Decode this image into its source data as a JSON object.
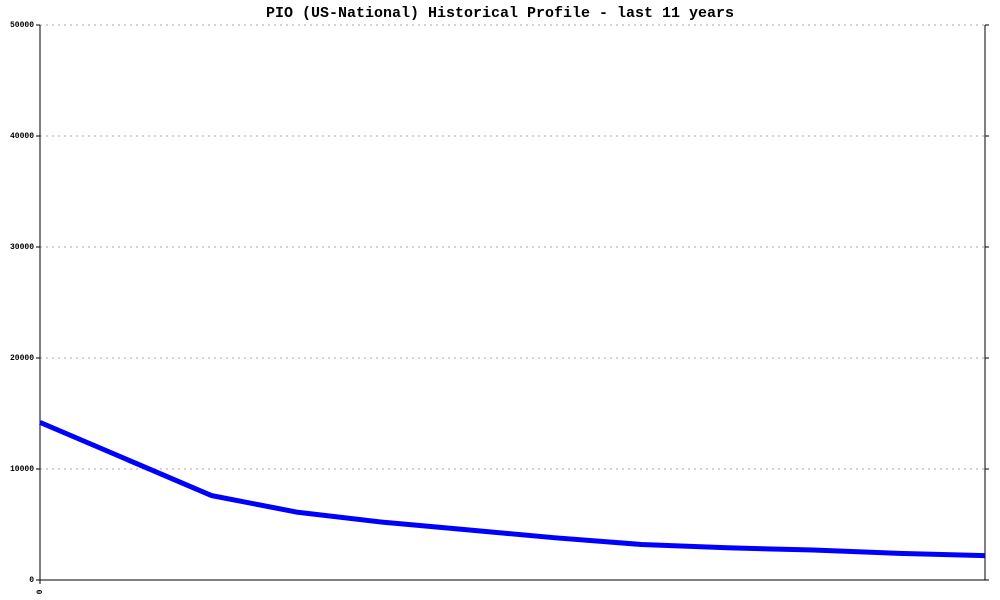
{
  "chart_data": {
    "type": "line",
    "title": "PIO (US-National) Historical Profile - last 11 years",
    "x": [
      0,
      1,
      2,
      3,
      4,
      5,
      6,
      7,
      8,
      9,
      10,
      11
    ],
    "series": [
      {
        "color": "#0000ff",
        "values": [
          14200,
          10900,
          7600,
          6100,
          5200,
          4500,
          3800,
          3200,
          2900,
          2700,
          2400,
          2200
        ]
      }
    ],
    "xlim": [
      0,
      11
    ],
    "xticks": [
      0
    ],
    "ylim": [
      0,
      50000
    ],
    "yticks": [
      0,
      10000,
      20000,
      30000,
      40000,
      50000
    ],
    "grid": true
  }
}
